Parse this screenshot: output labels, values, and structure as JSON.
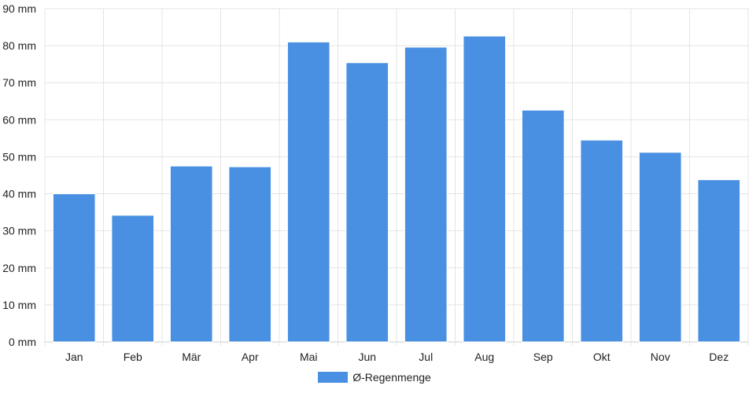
{
  "chart_data": {
    "type": "bar",
    "categories": [
      "Jan",
      "Feb",
      "Mär",
      "Apr",
      "Mai",
      "Jun",
      "Jul",
      "Aug",
      "Sep",
      "Okt",
      "Nov",
      "Dez"
    ],
    "series": [
      {
        "name": "Ø-Regenmenge",
        "values": [
          40.0,
          34.2,
          47.5,
          47.3,
          81.0,
          75.4,
          79.6,
          82.6,
          62.6,
          54.5,
          51.2,
          43.8
        ],
        "color": "#4a90e2"
      }
    ],
    "y_ticks": [
      "0 mm",
      "10 mm",
      "20 mm",
      "30 mm",
      "40 mm",
      "50 mm",
      "60 mm",
      "70 mm",
      "80 mm",
      "90 mm"
    ],
    "ylim": [
      0,
      90
    ],
    "grid": true,
    "legend_position": "bottom"
  }
}
